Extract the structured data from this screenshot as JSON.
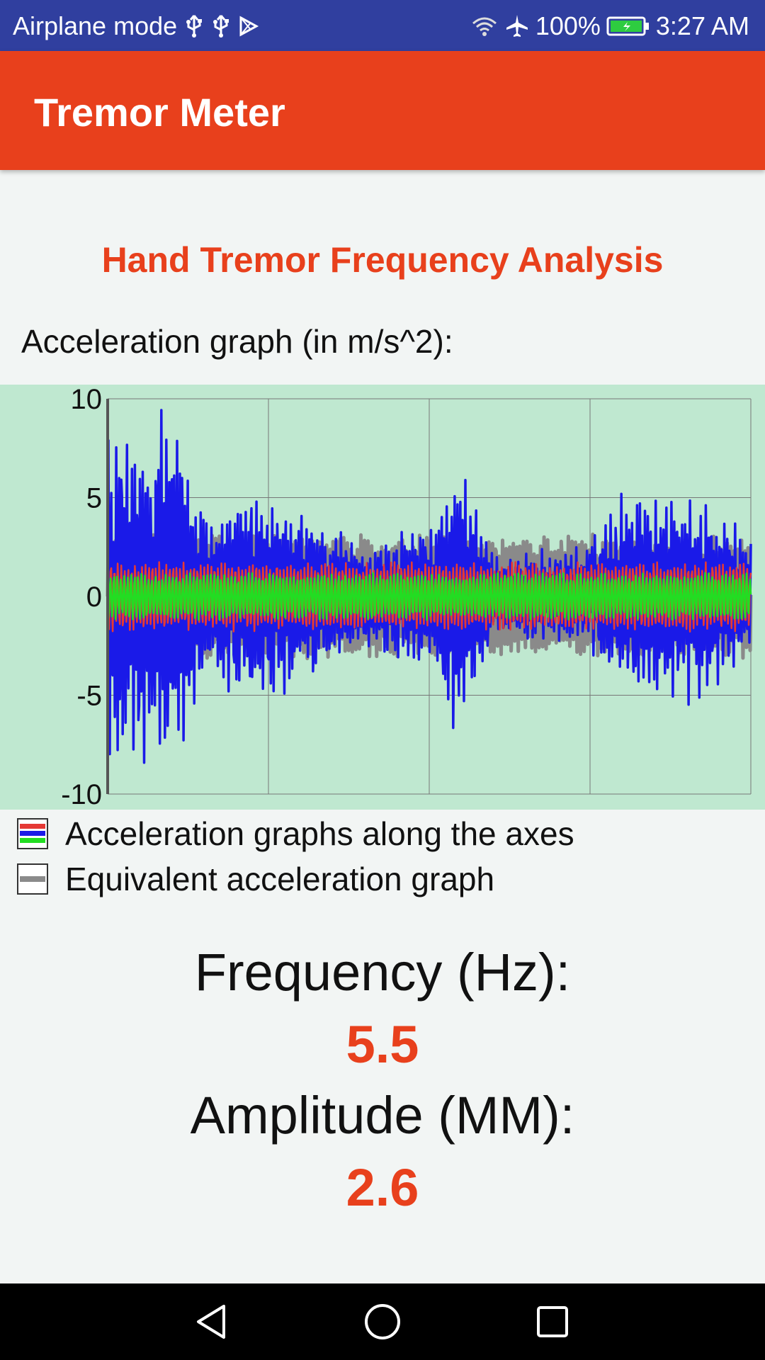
{
  "status_bar": {
    "left_text": "Airplane mode",
    "left_icons": [
      "usb-icon",
      "usb-icon",
      "play-store-icon"
    ],
    "right_icons": [
      "wifi-icon",
      "airplane-icon"
    ],
    "battery": "100%",
    "time": "3:27 AM"
  },
  "app_bar": {
    "title": "Tremor Meter"
  },
  "main": {
    "section_title": "Hand Tremor Frequency Analysis",
    "graph_label": "Acceleration graph (in m/s^2):",
    "legend": [
      {
        "label": "Acceleration graphs along the axes",
        "colors": [
          "#e53935",
          "#1a1ae8",
          "#22dd22"
        ]
      },
      {
        "label": "Equivalent acceleration graph",
        "colors": [
          "#8a8a8a"
        ]
      }
    ],
    "frequency_label": "Frequency (Hz):",
    "frequency_value": "5.5",
    "amplitude_label": "Amplitude (MM):",
    "amplitude_value": "2.6"
  },
  "chart_data": {
    "type": "line",
    "ylim": [
      -10,
      10
    ],
    "yticks": [
      "10",
      "5",
      "0",
      "-5",
      "-10"
    ],
    "grid": true,
    "background": "#bfe8d0",
    "series": [
      {
        "color": "#8a8a8a",
        "amplitude": 3.2
      },
      {
        "color": "#1a1ae8",
        "envelope": [
          [
            0,
            8.5
          ],
          [
            0.06,
            7.5
          ],
          [
            0.1,
            8.8
          ],
          [
            0.16,
            3.5
          ],
          [
            0.22,
            5.5
          ],
          [
            0.34,
            3.5
          ],
          [
            0.4,
            2.5
          ],
          [
            0.5,
            3.5
          ],
          [
            0.55,
            6.5
          ],
          [
            0.6,
            2.0
          ],
          [
            0.74,
            2.5
          ],
          [
            0.82,
            5.0
          ],
          [
            0.92,
            5.0
          ],
          [
            1.0,
            2.5
          ]
        ]
      },
      {
        "color": "#e53935",
        "amplitude": 1.8
      },
      {
        "color": "#22dd22",
        "amplitude": 1.2
      }
    ]
  },
  "nav_bar": {
    "icons": [
      "back-icon",
      "home-icon",
      "recents-icon"
    ]
  }
}
